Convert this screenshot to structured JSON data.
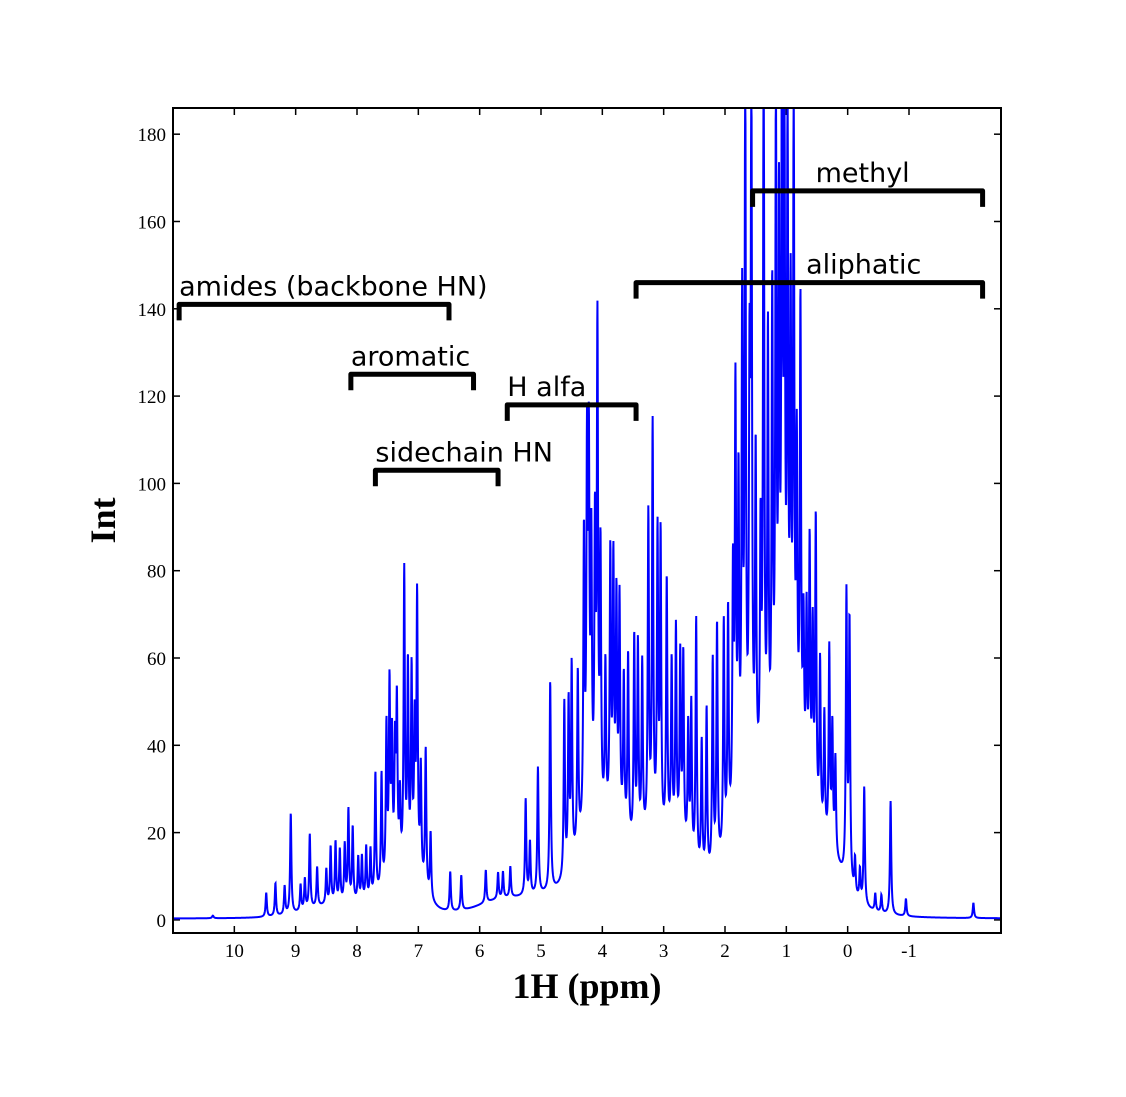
{
  "chart_data": {
    "type": "line",
    "xlabel": "1H (ppm)",
    "ylabel": "Int",
    "xlim": [
      11,
      -2.5
    ],
    "ylim": [
      -3,
      186
    ],
    "x_reversed": true,
    "xticks": [
      10,
      9,
      8,
      7,
      6,
      5,
      4,
      3,
      2,
      1,
      0,
      -1
    ],
    "xtick_labels": [
      "10",
      "9",
      "8",
      "7",
      "6",
      "5",
      "4",
      "3",
      "2",
      "1",
      "0",
      "-1"
    ],
    "yticks": [
      0,
      20,
      40,
      60,
      80,
      100,
      120,
      140,
      160,
      180
    ],
    "ytick_labels": [
      "0",
      "20",
      "40",
      "60",
      "80",
      "100",
      "120",
      "140",
      "160",
      "180"
    ],
    "grid": false,
    "line_color": "#0000ff",
    "baseline": 0.3,
    "series": [
      {
        "peaks": [
          [
            10.35,
            0.6,
            0.015
          ],
          [
            9.48,
            5.5,
            0.012
          ],
          [
            9.33,
            7.5,
            0.012
          ],
          [
            9.18,
            6.5,
            0.012
          ],
          [
            9.08,
            23,
            0.012
          ],
          [
            8.92,
            6,
            0.012
          ],
          [
            8.85,
            7,
            0.012
          ],
          [
            8.77,
            17,
            0.012
          ],
          [
            8.65,
            9,
            0.012
          ],
          [
            8.5,
            8,
            0.012
          ],
          [
            8.43,
            13,
            0.012
          ],
          [
            8.35,
            14,
            0.012
          ],
          [
            8.28,
            12,
            0.012
          ],
          [
            8.2,
            13,
            0.012
          ],
          [
            8.14,
            21,
            0.012
          ],
          [
            8.07,
            17,
            0.012
          ],
          [
            7.98,
            10,
            0.012
          ],
          [
            7.92,
            10,
            0.012
          ],
          [
            7.85,
            12,
            0.012
          ],
          [
            7.78,
            11,
            0.012
          ],
          [
            7.7,
            28,
            0.012
          ],
          [
            7.6,
            26,
            0.012
          ],
          [
            7.52,
            35,
            0.012
          ],
          [
            7.47,
            43,
            0.012
          ],
          [
            7.43,
            30,
            0.012
          ],
          [
            7.38,
            27,
            0.012
          ],
          [
            7.35,
            37,
            0.012
          ],
          [
            7.3,
            16,
            0.012
          ],
          [
            7.23,
            68,
            0.012
          ],
          [
            7.17,
            46,
            0.012
          ],
          [
            7.11,
            45,
            0.012
          ],
          [
            7.06,
            32,
            0.012
          ],
          [
            7.02,
            63,
            0.012
          ],
          [
            6.96,
            25,
            0.012
          ],
          [
            6.88,
            32,
            0.012
          ],
          [
            6.8,
            15,
            0.012
          ],
          [
            6.48,
            9,
            0.012
          ],
          [
            6.3,
            8,
            0.012
          ],
          [
            5.9,
            7.5,
            0.012
          ],
          [
            5.7,
            6,
            0.012
          ],
          [
            5.62,
            6,
            0.012
          ],
          [
            5.5,
            7,
            0.012
          ],
          [
            5.25,
            22,
            0.012
          ],
          [
            5.18,
            12,
            0.012
          ],
          [
            5.05,
            29,
            0.012
          ],
          [
            4.85,
            48,
            0.012
          ],
          [
            4.62,
            40,
            0.012
          ],
          [
            4.55,
            38,
            0.012
          ],
          [
            4.5,
            45,
            0.012
          ],
          [
            4.4,
            40,
            0.012
          ],
          [
            4.3,
            66,
            0.012
          ],
          [
            4.25,
            80,
            0.012
          ],
          [
            4.22,
            79,
            0.012
          ],
          [
            4.18,
            60,
            0.012
          ],
          [
            4.12,
            63,
            0.012
          ],
          [
            4.08,
            110,
            0.012
          ],
          [
            4.03,
            60,
            0.012
          ],
          [
            3.95,
            35,
            0.012
          ],
          [
            3.87,
            60,
            0.012
          ],
          [
            3.82,
            58,
            0.012
          ],
          [
            3.77,
            50,
            0.012
          ],
          [
            3.72,
            51,
            0.012
          ],
          [
            3.65,
            35,
            0.012
          ],
          [
            3.58,
            42,
            0.012
          ],
          [
            3.48,
            47,
            0.012
          ],
          [
            3.42,
            45,
            0.012
          ],
          [
            3.35,
            40,
            0.012
          ],
          [
            3.25,
            73,
            0.012
          ],
          [
            3.18,
            93,
            0.012
          ],
          [
            3.1,
            68,
            0.012
          ],
          [
            3.05,
            68,
            0.012
          ],
          [
            2.95,
            59,
            0.012
          ],
          [
            2.87,
            40,
            0.012
          ],
          [
            2.8,
            48,
            0.012
          ],
          [
            2.73,
            42,
            0.012
          ],
          [
            2.68,
            43,
            0.012
          ],
          [
            2.6,
            29,
            0.012
          ],
          [
            2.55,
            35,
            0.012
          ],
          [
            2.47,
            57,
            0.012
          ],
          [
            2.38,
            30,
            0.012
          ],
          [
            2.3,
            38,
            0.012
          ],
          [
            2.2,
            48,
            0.012
          ],
          [
            2.13,
            55,
            0.012
          ],
          [
            2.02,
            52,
            0.012
          ],
          [
            1.95,
            52,
            0.012
          ],
          [
            1.87,
            55,
            0.012
          ],
          [
            1.83,
            95,
            0.012
          ],
          [
            1.78,
            72,
            0.012
          ],
          [
            1.72,
            110,
            0.012
          ],
          [
            1.67,
            163,
            0.012
          ],
          [
            1.6,
            85,
            0.012
          ],
          [
            1.57,
            156,
            0.012
          ],
          [
            1.5,
            75,
            0.012
          ],
          [
            1.42,
            55,
            0.012
          ],
          [
            1.37,
            172,
            0.012
          ],
          [
            1.3,
            100,
            0.012
          ],
          [
            1.23,
            108,
            0.012
          ],
          [
            1.17,
            153,
            0.012
          ],
          [
            1.12,
            120,
            0.012
          ],
          [
            1.07,
            185,
            0.012
          ],
          [
            1.03,
            130,
            0.012
          ],
          [
            0.98,
            144,
            0.012
          ],
          [
            0.93,
            100,
            0.012
          ],
          [
            0.88,
            149,
            0.012
          ],
          [
            0.83,
            70,
            0.012
          ],
          [
            0.77,
            107,
            0.012
          ],
          [
            0.72,
            35,
            0.012
          ],
          [
            0.67,
            40,
            0.012
          ],
          [
            0.62,
            58,
            0.012
          ],
          [
            0.57,
            40,
            0.012
          ],
          [
            0.52,
            68,
            0.012
          ],
          [
            0.45,
            38,
            0.012
          ],
          [
            0.38,
            28,
            0.012
          ],
          [
            0.3,
            45,
            0.012
          ],
          [
            0.25,
            28,
            0.012
          ],
          [
            0.2,
            22,
            0.012
          ],
          [
            0.02,
            65,
            0.012
          ],
          [
            -0.03,
            60,
            0.012
          ],
          [
            -0.12,
            8,
            0.012
          ],
          [
            -0.2,
            7,
            0.012
          ],
          [
            -0.27,
            27,
            0.012
          ],
          [
            -0.45,
            4,
            0.012
          ],
          [
            -0.55,
            4,
            0.012
          ],
          [
            -0.7,
            26,
            0.012
          ],
          [
            -0.95,
            4,
            0.012
          ],
          [
            -2.05,
            3.5,
            0.012
          ]
        ]
      }
    ],
    "annotations": [
      {
        "text": "amides (backbone HN)",
        "x_start": 10.9,
        "x_end": 6.5,
        "y": 141
      },
      {
        "text": "aromatic",
        "x_start": 8.1,
        "x_end": 6.1,
        "y": 125
      },
      {
        "text": "sidechain HN",
        "x_start": 7.7,
        "x_end": 5.7,
        "y": 103
      },
      {
        "text": "H alfa",
        "x_start": 5.55,
        "x_end": 3.45,
        "y": 118
      },
      {
        "text": "aliphatic",
        "x_start": 3.45,
        "x_end": -2.2,
        "y": 146
      },
      {
        "text": "methyl",
        "x_start": 1.55,
        "x_end": -2.2,
        "y": 167
      }
    ]
  }
}
